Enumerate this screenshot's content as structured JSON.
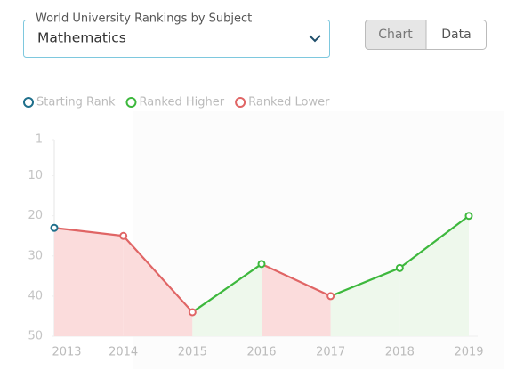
{
  "ui": {
    "dropdown_label": "World University Rankings by Subject",
    "dropdown_value": "Mathematics",
    "tabs": [
      "Chart",
      "Data"
    ]
  },
  "chart_data": {
    "type": "line",
    "categories": [
      "2013",
      "2014",
      "2015",
      "2016",
      "2017",
      "2018",
      "2019"
    ],
    "values": [
      23,
      25,
      44,
      32,
      40,
      33,
      20
    ],
    "ylim": [
      1,
      50
    ],
    "yticks": [
      1,
      10,
      20,
      30,
      40,
      50
    ],
    "inverted": true,
    "legend": [
      {
        "name": "Starting Rank",
        "color": "#1f6f8b"
      },
      {
        "name": "Ranked Higher",
        "color": "#3db83d"
      },
      {
        "name": "Ranked Lower",
        "color": "#e06565"
      }
    ]
  }
}
